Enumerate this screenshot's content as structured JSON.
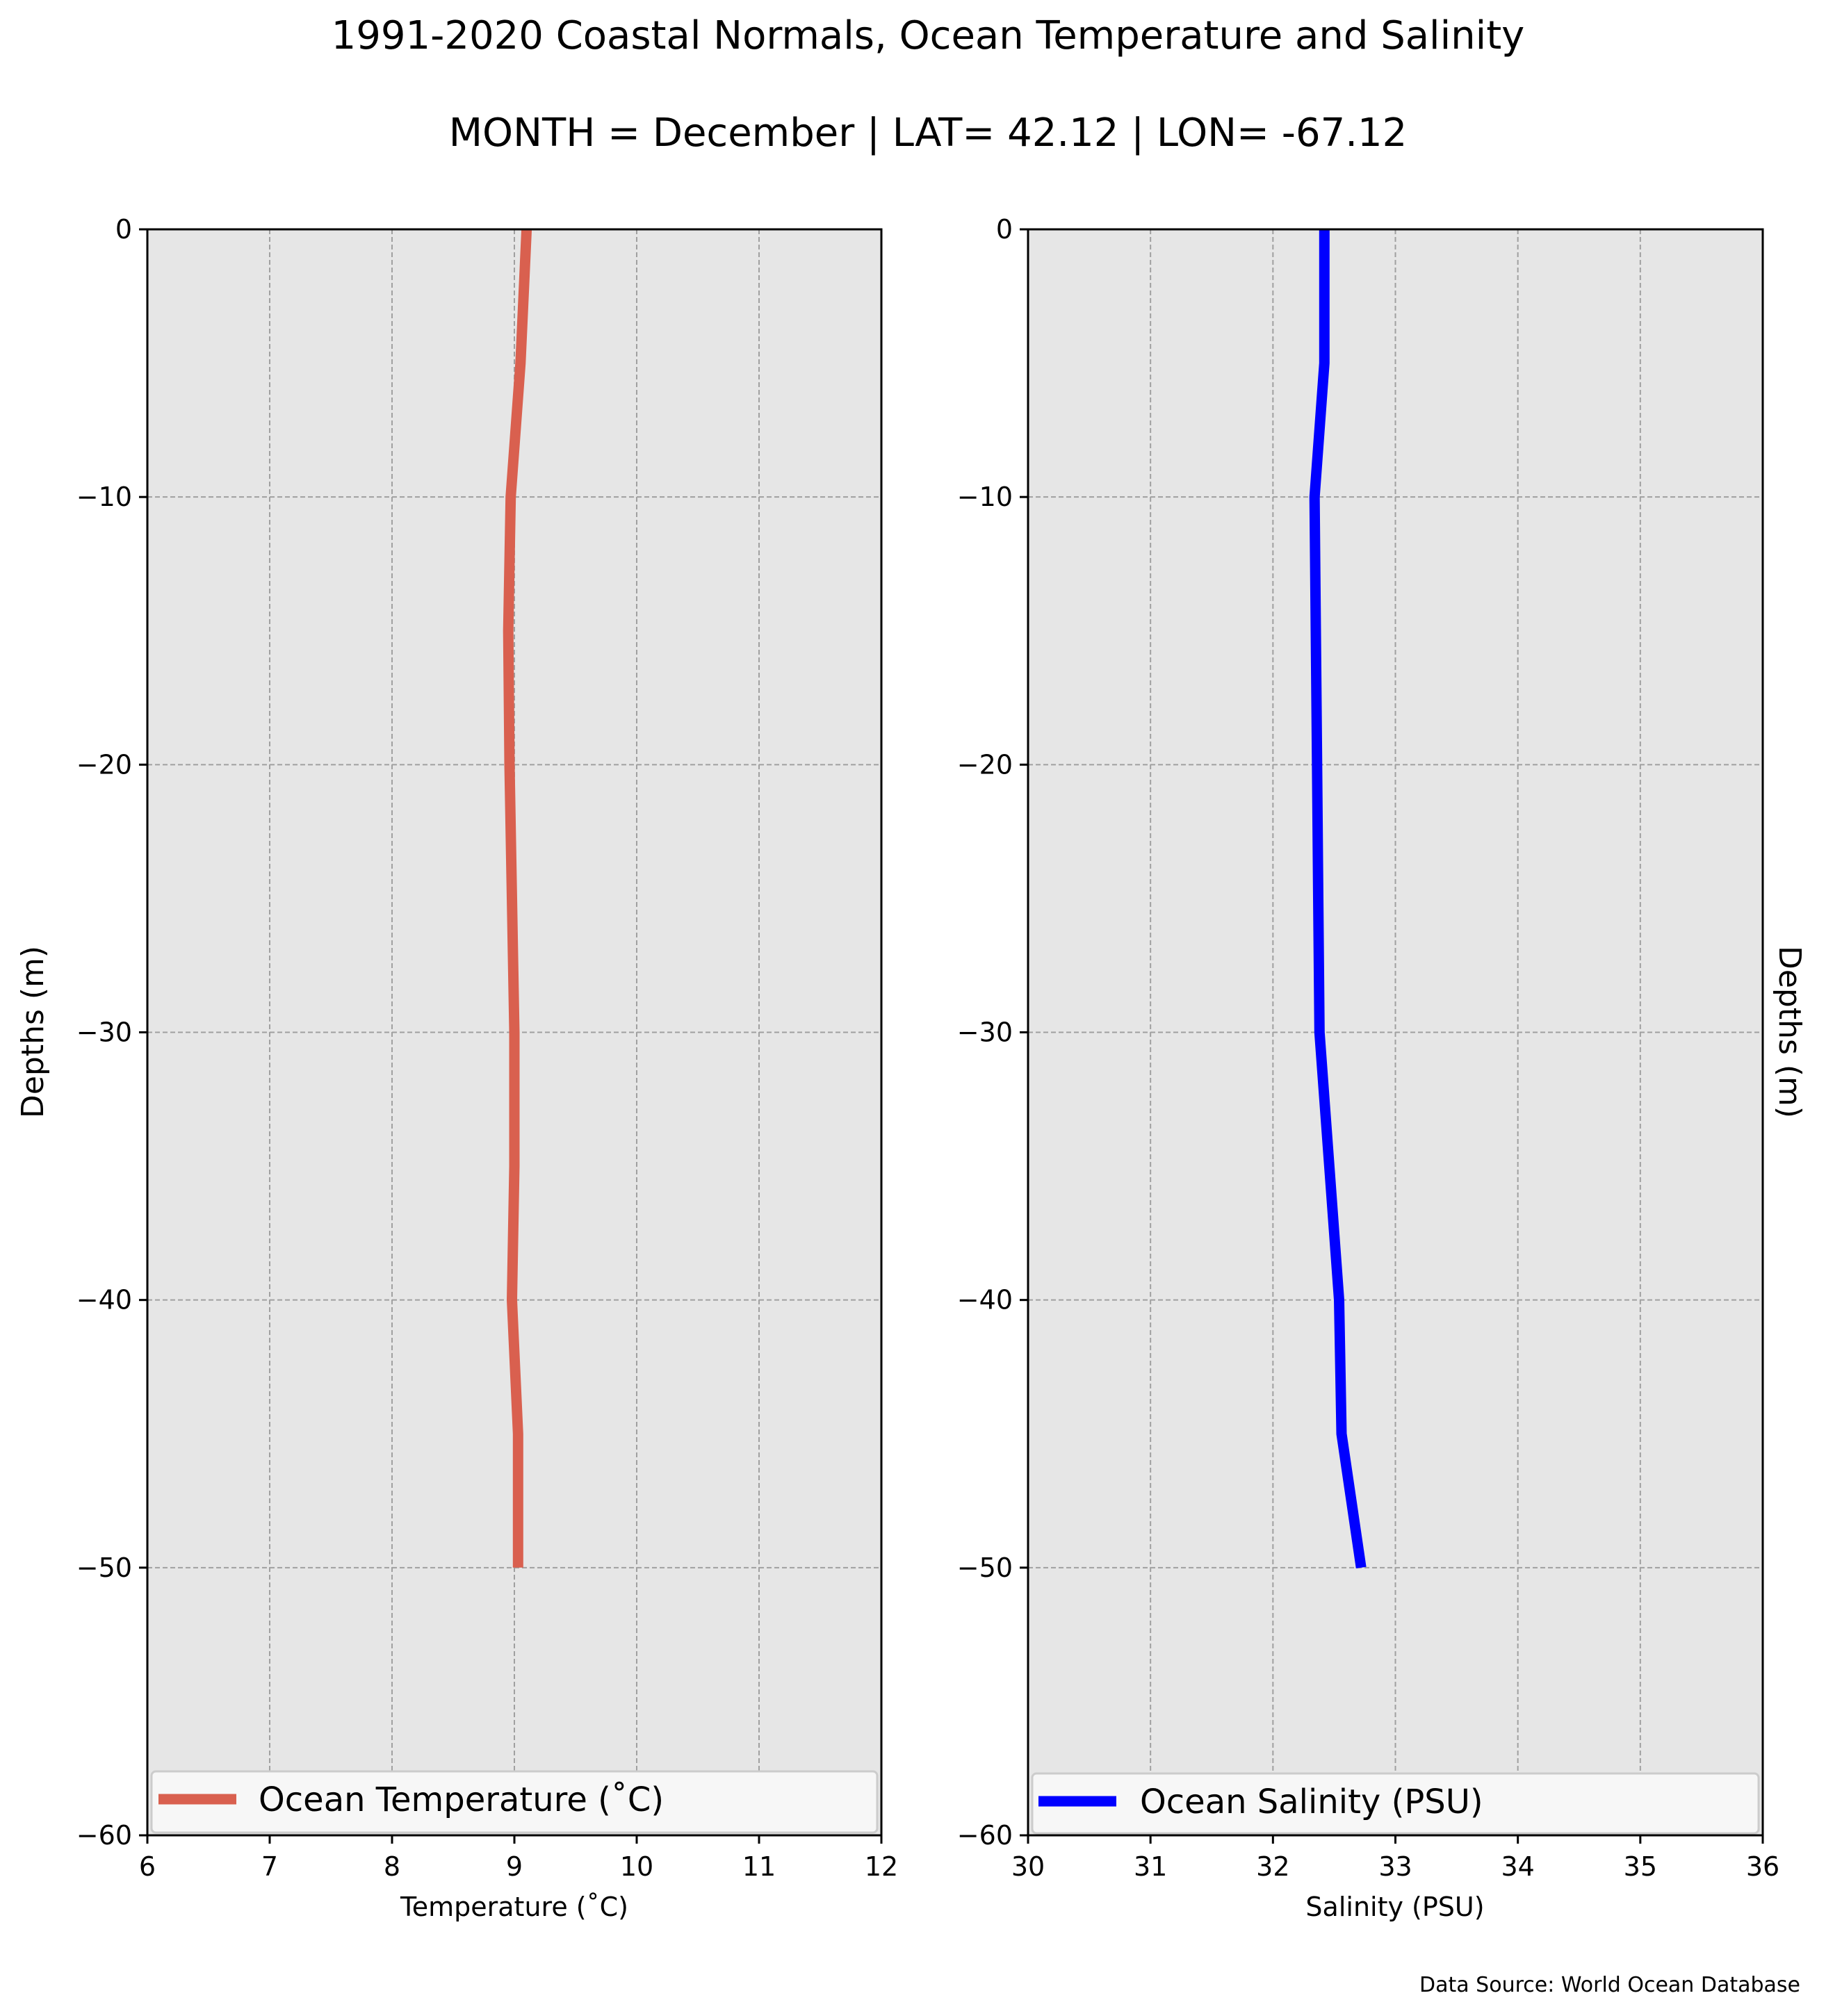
{
  "figure": {
    "title": "1991-2020 Coastal Normals, Ocean Temperature and Salinity",
    "subtitle": "MONTH = December | LAT= 42.12 | LON= -67.12",
    "source_note": "Data Source: World Ocean Database"
  },
  "colors": {
    "panel_background": "#e6e6e6",
    "grid": "#a0a0a0",
    "temperature_line": "#d9604f",
    "salinity_line": "#0000ff"
  },
  "chart_data": [
    {
      "type": "line",
      "xlabel": "Temperature ($^\\circ$C)",
      "xlabel_display": "Temperature (˚C)",
      "ylabel": "Depths (m)",
      "xlim": [
        6,
        12
      ],
      "ylim": [
        -60,
        0
      ],
      "xticks": [
        6,
        7,
        8,
        9,
        10,
        11,
        12
      ],
      "yticks": [
        0,
        -10,
        -20,
        -30,
        -40,
        -50,
        -60
      ],
      "ytick_labels": [
        "0",
        "−10",
        "−20",
        "−30",
        "−40",
        "−50",
        "−60"
      ],
      "grid": true,
      "legend_position": "lower center",
      "series": [
        {
          "name": "Ocean Temperature (˚C)",
          "x": [
            9.1,
            9.05,
            8.97,
            8.95,
            8.96,
            8.98,
            9.0,
            9.0,
            8.98,
            9.03,
            9.03
          ],
          "y": [
            0,
            -5,
            -10,
            -15,
            -20,
            -25,
            -30,
            -35,
            -40,
            -45,
            -50
          ]
        }
      ]
    },
    {
      "type": "line",
      "xlabel": "Salinity (PSU)",
      "ylabel": "Depths (m)",
      "xlim": [
        30,
        36
      ],
      "ylim": [
        -60,
        0
      ],
      "xticks": [
        30,
        31,
        32,
        33,
        34,
        35,
        36
      ],
      "yticks": [
        0,
        -10,
        -20,
        -30,
        -40,
        -50,
        -60
      ],
      "ytick_labels": [
        "0",
        "−10",
        "−20",
        "−30",
        "−40",
        "−50",
        "−60"
      ],
      "grid": true,
      "legend_position": "lower center",
      "series": [
        {
          "name": "Ocean Salinity (PSU)",
          "x": [
            32.42,
            32.42,
            32.34,
            32.35,
            32.36,
            32.37,
            32.38,
            32.46,
            32.54,
            32.56,
            32.72
          ],
          "y": [
            0,
            -5,
            -10,
            -15,
            -20,
            -25,
            -30,
            -35,
            -40,
            -45,
            -50
          ]
        }
      ]
    }
  ]
}
